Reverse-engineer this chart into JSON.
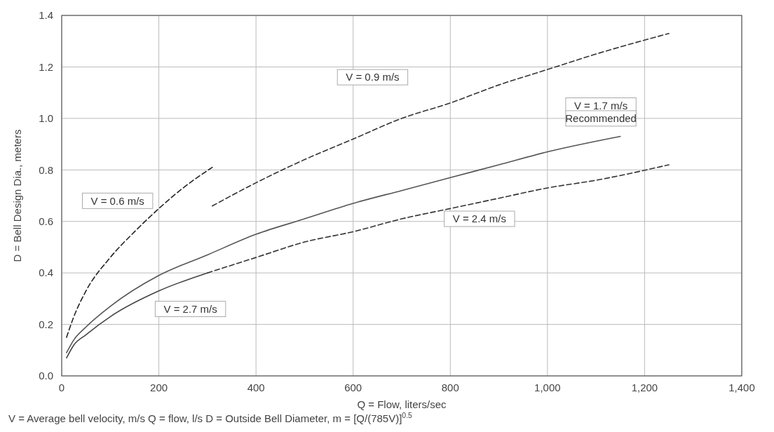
{
  "chart_data": {
    "type": "line",
    "xlabel": "Q = Flow, liters/sec",
    "ylabel": "D = Bell Design Dia., meters",
    "xlim": [
      0,
      1400
    ],
    "ylim": [
      0,
      1.4
    ],
    "xticks": [
      0,
      200,
      400,
      600,
      800,
      {
        "value": 1000,
        "label": "1,000"
      },
      {
        "value": 1200,
        "label": "1,200"
      },
      {
        "value": 1400,
        "label": "1,400"
      }
    ],
    "yticks": [
      {
        "value": 0,
        "label": "0.0"
      },
      0.2,
      0.4,
      0.6,
      0.8,
      {
        "value": 1,
        "label": "1.0"
      },
      1.2,
      1.4
    ],
    "grid": true,
    "marker": "none",
    "series": [
      {
        "color": "#222222",
        "line_style": "dashed",
        "x": [
          10,
          25,
          50,
          100,
          150,
          200,
          250,
          310
        ],
        "values": [
          0.15,
          0.23,
          0.33,
          0.46,
          0.56,
          0.65,
          0.73,
          0.81
        ]
      },
      {
        "color": "#333333",
        "line_style": "dashed",
        "x": [
          310,
          400,
          500,
          600,
          700,
          800,
          900,
          1000,
          1100,
          1250
        ],
        "values": [
          0.66,
          0.75,
          0.84,
          0.92,
          1.0,
          1.06,
          1.13,
          1.19,
          1.25,
          1.33
        ]
      },
      {
        "color": "#555555",
        "line_style": "solid",
        "x": [
          10,
          25,
          50,
          100,
          200,
          300,
          400,
          500,
          600,
          700,
          800,
          900,
          1000,
          1150
        ],
        "values": [
          0.09,
          0.14,
          0.19,
          0.27,
          0.39,
          0.47,
          0.55,
          0.61,
          0.67,
          0.72,
          0.77,
          0.82,
          0.87,
          0.93
        ]
      },
      {
        "color": "#444444",
        "line_style": "solid",
        "x": [
          10,
          25,
          50,
          100,
          200,
          300
        ],
        "values": [
          0.07,
          0.12,
          0.16,
          0.23,
          0.33,
          0.4
        ]
      },
      {
        "color": "#333333",
        "line_style": "dashed",
        "x": [
          300,
          400,
          500,
          600,
          700,
          800,
          900,
          1000,
          1100,
          1250
        ],
        "values": [
          0.4,
          0.46,
          0.52,
          0.56,
          0.61,
          0.65,
          0.69,
          0.73,
          0.76,
          0.82
        ]
      }
    ],
    "annotations": [
      "V = 0.6 m/s",
      "V = 0.9 m/s",
      "V = 1.7 m/s",
      "Recommended",
      "V = 2.4 m/s",
      "V = 2.7 m/s",
      "V = Average bell velocity, m/s   Q = flow, l/s   D = Outside Bell Diameter, m = [Q/(785V)]$^{0.5}$"
    ]
  }
}
